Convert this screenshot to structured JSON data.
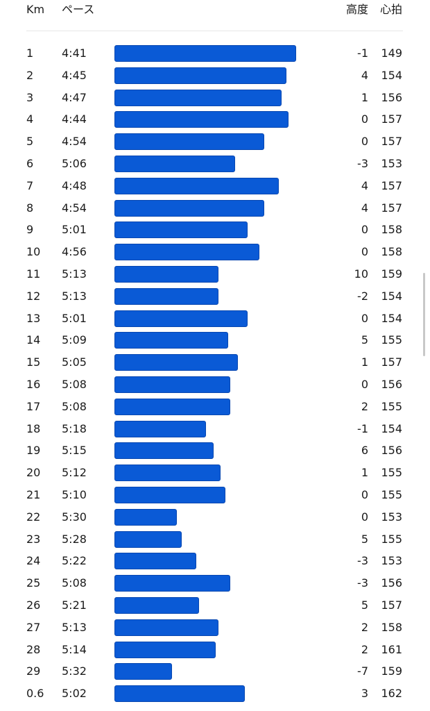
{
  "header": {
    "km": "Km",
    "pace": "ペース",
    "elevation": "高度",
    "heart_rate": "心拍"
  },
  "colors": {
    "bar": "#0a5ad6",
    "text": "#1a1a1a",
    "divider": "#e6e6e6"
  },
  "splits": [
    {
      "km": "1",
      "pace": "4:41",
      "elevation": "-1",
      "heart_rate": "149"
    },
    {
      "km": "2",
      "pace": "4:45",
      "elevation": "4",
      "heart_rate": "154"
    },
    {
      "km": "3",
      "pace": "4:47",
      "elevation": "1",
      "heart_rate": "156"
    },
    {
      "km": "4",
      "pace": "4:44",
      "elevation": "0",
      "heart_rate": "157"
    },
    {
      "km": "5",
      "pace": "4:54",
      "elevation": "0",
      "heart_rate": "157"
    },
    {
      "km": "6",
      "pace": "5:06",
      "elevation": "-3",
      "heart_rate": "153"
    },
    {
      "km": "7",
      "pace": "4:48",
      "elevation": "4",
      "heart_rate": "157"
    },
    {
      "km": "8",
      "pace": "4:54",
      "elevation": "4",
      "heart_rate": "157"
    },
    {
      "km": "9",
      "pace": "5:01",
      "elevation": "0",
      "heart_rate": "158"
    },
    {
      "km": "10",
      "pace": "4:56",
      "elevation": "0",
      "heart_rate": "158"
    },
    {
      "km": "11",
      "pace": "5:13",
      "elevation": "10",
      "heart_rate": "159"
    },
    {
      "km": "12",
      "pace": "5:13",
      "elevation": "-2",
      "heart_rate": "154"
    },
    {
      "km": "13",
      "pace": "5:01",
      "elevation": "0",
      "heart_rate": "154"
    },
    {
      "km": "14",
      "pace": "5:09",
      "elevation": "5",
      "heart_rate": "155"
    },
    {
      "km": "15",
      "pace": "5:05",
      "elevation": "1",
      "heart_rate": "157"
    },
    {
      "km": "16",
      "pace": "5:08",
      "elevation": "0",
      "heart_rate": "156"
    },
    {
      "km": "17",
      "pace": "5:08",
      "elevation": "2",
      "heart_rate": "155"
    },
    {
      "km": "18",
      "pace": "5:18",
      "elevation": "-1",
      "heart_rate": "154"
    },
    {
      "km": "19",
      "pace": "5:15",
      "elevation": "6",
      "heart_rate": "156"
    },
    {
      "km": "20",
      "pace": "5:12",
      "elevation": "1",
      "heart_rate": "155"
    },
    {
      "km": "21",
      "pace": "5:10",
      "elevation": "0",
      "heart_rate": "155"
    },
    {
      "km": "22",
      "pace": "5:30",
      "elevation": "0",
      "heart_rate": "153"
    },
    {
      "km": "23",
      "pace": "5:28",
      "elevation": "5",
      "heart_rate": "155"
    },
    {
      "km": "24",
      "pace": "5:22",
      "elevation": "-3",
      "heart_rate": "153"
    },
    {
      "km": "25",
      "pace": "5:08",
      "elevation": "-3",
      "heart_rate": "156"
    },
    {
      "km": "26",
      "pace": "5:21",
      "elevation": "5",
      "heart_rate": "157"
    },
    {
      "km": "27",
      "pace": "5:13",
      "elevation": "2",
      "heart_rate": "158"
    },
    {
      "km": "28",
      "pace": "5:14",
      "elevation": "2",
      "heart_rate": "161"
    },
    {
      "km": "29",
      "pace": "5:32",
      "elevation": "-7",
      "heart_rate": "159"
    },
    {
      "km": "0.6",
      "pace": "5:02",
      "elevation": "3",
      "heart_rate": "162"
    }
  ]
}
